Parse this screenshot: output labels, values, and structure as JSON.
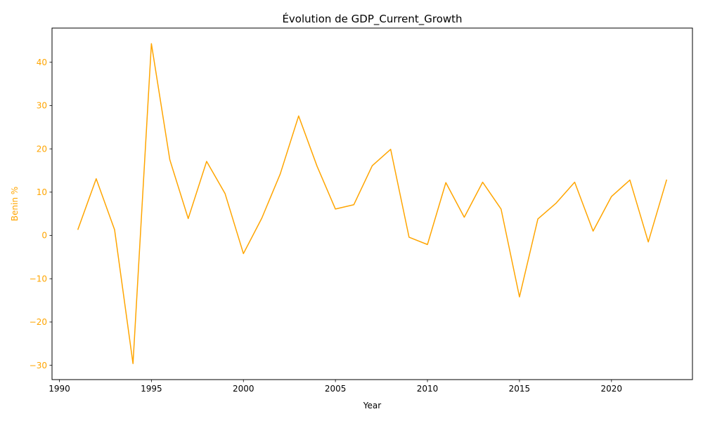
{
  "chart_data": {
    "type": "line",
    "title": "Évolution de GDP_Current_Growth",
    "xlabel": "Year",
    "ylabel": "Benin %",
    "xlim": [
      1989.6,
      2024.4
    ],
    "ylim": [
      -33.3,
      47.9
    ],
    "xticks": [
      1990,
      1995,
      2000,
      2005,
      2010,
      2015,
      2020
    ],
    "yticks": [
      -30,
      -20,
      -10,
      0,
      10,
      20,
      30,
      40
    ],
    "grid": false,
    "legend": "none",
    "series": [
      {
        "color": "#FFA500",
        "x": [
          1991,
          1992,
          1993,
          1994,
          1995,
          1996,
          1997,
          1998,
          1999,
          2000,
          2001,
          2002,
          2003,
          2004,
          2005,
          2006,
          2007,
          2008,
          2009,
          2010,
          2011,
          2012,
          2013,
          2014,
          2015,
          2016,
          2017,
          2018,
          2019,
          2020,
          2021,
          2022,
          2023
        ],
        "values": [
          1.3,
          13.1,
          1.3,
          -29.6,
          44.3,
          17.5,
          3.9,
          17.1,
          9.7,
          -4.2,
          4.0,
          14.2,
          27.6,
          16.0,
          6.1,
          7.1,
          16.1,
          19.9,
          -0.4,
          -2.1,
          12.2,
          4.2,
          12.3,
          6.1,
          -14.2,
          3.8,
          7.5,
          12.3,
          1.0,
          9.0,
          12.8,
          -1.5,
          12.9
        ]
      }
    ],
    "colors": {
      "line": "#FFA500",
      "ylabel": "#FFA500",
      "ytick_labels": "#FFA500",
      "axes": "#000000"
    }
  }
}
